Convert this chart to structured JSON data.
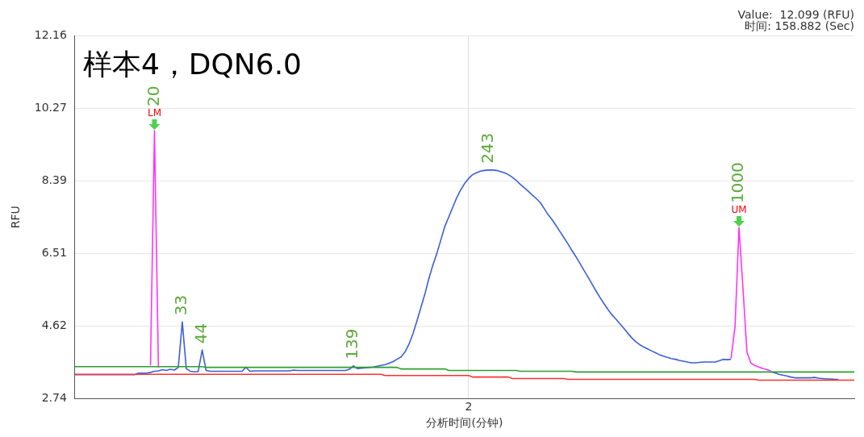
{
  "chart_data": {
    "type": "line",
    "title": "样本4，DQN6.0",
    "xlabel": "分析时间(分钟)",
    "ylabel": "RFU",
    "categories": [
      null,
      null,
      null,
      null,
      null,
      null,
      null,
      null,
      null,
      null,
      null,
      null,
      null,
      null,
      null,
      null,
      null,
      null,
      null,
      null,
      null,
      null,
      null,
      null,
      null,
      null,
      null,
      null,
      null,
      null,
      null,
      null,
      null,
      null,
      null,
      null,
      null,
      null,
      null,
      null,
      null,
      null,
      null,
      null,
      null,
      null,
      null,
      null,
      null,
      null,
      null,
      null,
      null,
      null,
      null,
      null,
      null,
      null,
      null,
      null,
      null,
      null,
      null,
      null,
      null,
      null,
      null,
      null,
      null,
      null,
      null,
      null,
      null,
      null,
      null,
      null,
      null,
      null,
      null,
      null,
      null,
      null,
      null,
      null,
      null,
      null,
      null,
      null,
      null,
      null,
      null,
      null,
      null,
      null,
      null,
      null,
      null,
      null,
      null,
      "2",
      null,
      null,
      null,
      null,
      null,
      null,
      null,
      null,
      null,
      null,
      null,
      null,
      null,
      null,
      null,
      null,
      null,
      null,
      null,
      null,
      null,
      null,
      null,
      null,
      null,
      null,
      null,
      null,
      null,
      null,
      null,
      null,
      null,
      null,
      null,
      null,
      null,
      null,
      null,
      null,
      null,
      null,
      null,
      null,
      null,
      null,
      null,
      null,
      null,
      null,
      null,
      null,
      null,
      null,
      null,
      null,
      null,
      null,
      null,
      null,
      null,
      null,
      null,
      null,
      null,
      null,
      null,
      null,
      null,
      null,
      null,
      null,
      null,
      null,
      null,
      null,
      null,
      null,
      null,
      null,
      null,
      null,
      null,
      null,
      null,
      null,
      null,
      null,
      null,
      null,
      null,
      null,
      null,
      null,
      null,
      null,
      null
    ],
    "ylim": [
      2.74,
      12.16
    ],
    "yticks": [
      2.74,
      4.62,
      6.51,
      8.39,
      10.27,
      12.16
    ],
    "grid": true,
    "legend": false,
    "series": [
      {
        "color": "#2e9e2e",
        "values": [
          3.57,
          3.57,
          3.57,
          3.57,
          3.57,
          3.57,
          3.57,
          3.57,
          3.57,
          3.57,
          3.57,
          3.57,
          3.57,
          3.57,
          3.57,
          3.57,
          3.57,
          3.57,
          3.57,
          3.57,
          3.57,
          3.57,
          3.57,
          3.57,
          3.57,
          3.57,
          3.57,
          3.57,
          3.57,
          3.57,
          3.57,
          3.57,
          3.57,
          3.55,
          3.55,
          3.55,
          3.55,
          3.55,
          3.55,
          3.55,
          3.55,
          3.55,
          3.55,
          3.55,
          3.55,
          3.55,
          3.55,
          3.55,
          3.55,
          3.55,
          3.55,
          3.55,
          3.55,
          3.55,
          3.55,
          3.55,
          3.55,
          3.55,
          3.55,
          3.55,
          3.55,
          3.55,
          3.55,
          3.55,
          3.55,
          3.55,
          3.55,
          3.55,
          3.55,
          3.55,
          3.55,
          3.55,
          3.55,
          3.55,
          3.55,
          3.55,
          3.55,
          3.55,
          3.55,
          3.55,
          3.55,
          3.55,
          3.51,
          3.51,
          3.51,
          3.51,
          3.51,
          3.51,
          3.51,
          3.51,
          3.51,
          3.51,
          3.51,
          3.51,
          3.47,
          3.47,
          3.47,
          3.47,
          3.47,
          3.47,
          3.47,
          3.47,
          3.47,
          3.47,
          3.47,
          3.47,
          3.47,
          3.47,
          3.47,
          3.47,
          3.47,
          3.47,
          3.45,
          3.45,
          3.45,
          3.45,
          3.45,
          3.45,
          3.45,
          3.45,
          3.45,
          3.45,
          3.45,
          3.45,
          3.45,
          3.45,
          3.43,
          3.43,
          3.43,
          3.43,
          3.43,
          3.43,
          3.43,
          3.43,
          3.43,
          3.43,
          3.43,
          3.43,
          3.43,
          3.43,
          3.43,
          3.43,
          3.43,
          3.43,
          3.43,
          3.43,
          3.43,
          3.43,
          3.43,
          3.43,
          3.43,
          3.43,
          3.43,
          3.43,
          3.43,
          3.43,
          3.43,
          3.43,
          3.43,
          3.43,
          3.43,
          3.43,
          3.43,
          3.43,
          3.43,
          3.43,
          3.43,
          3.43,
          3.43,
          3.43,
          3.43,
          3.43,
          3.43,
          3.43,
          3.43,
          3.43,
          3.43,
          3.43,
          3.43,
          3.43,
          3.43,
          3.43,
          3.43,
          3.43,
          3.43,
          3.43,
          3.43,
          3.43,
          3.43,
          3.43,
          3.43,
          3.43,
          3.43,
          3.43,
          3.43,
          3.43,
          3.43
        ]
      },
      {
        "color": "#ff3030",
        "values": [
          3.37,
          3.37,
          3.37,
          3.37,
          3.37,
          3.37,
          3.37,
          3.37,
          3.37,
          3.37,
          3.37,
          3.37,
          3.37,
          3.37,
          3.37,
          3.37,
          3.37,
          3.37,
          3.37,
          3.37,
          3.37,
          3.37,
          3.37,
          3.37,
          3.37,
          3.37,
          3.37,
          3.37,
          3.37,
          3.37,
          3.37,
          3.37,
          3.37,
          3.37,
          3.37,
          3.37,
          3.37,
          3.37,
          3.37,
          3.37,
          3.37,
          3.37,
          3.37,
          3.37,
          3.37,
          3.37,
          3.37,
          3.37,
          3.37,
          3.37,
          3.37,
          3.37,
          3.37,
          3.37,
          3.37,
          3.37,
          3.37,
          3.37,
          3.37,
          3.37,
          3.37,
          3.37,
          3.37,
          3.37,
          3.37,
          3.37,
          3.37,
          3.37,
          3.37,
          3.37,
          3.37,
          3.37,
          3.37,
          3.37,
          3.37,
          3.37,
          3.37,
          3.37,
          3.34,
          3.34,
          3.34,
          3.34,
          3.34,
          3.34,
          3.34,
          3.34,
          3.34,
          3.34,
          3.34,
          3.34,
          3.34,
          3.34,
          3.34,
          3.34,
          3.34,
          3.34,
          3.34,
          3.34,
          3.34,
          3.34,
          3.3,
          3.3,
          3.3,
          3.3,
          3.3,
          3.3,
          3.3,
          3.3,
          3.3,
          3.3,
          3.26,
          3.26,
          3.26,
          3.26,
          3.26,
          3.26,
          3.26,
          3.26,
          3.26,
          3.26,
          3.26,
          3.26,
          3.26,
          3.26,
          3.24,
          3.24,
          3.24,
          3.24,
          3.24,
          3.24,
          3.24,
          3.24,
          3.24,
          3.24,
          3.24,
          3.24,
          3.24,
          3.24,
          3.24,
          3.24,
          3.24,
          3.24,
          3.24,
          3.24,
          3.24,
          3.24,
          3.24,
          3.24,
          3.24,
          3.24,
          3.24,
          3.24,
          3.24,
          3.24,
          3.24,
          3.24,
          3.24,
          3.24,
          3.24,
          3.24,
          3.24,
          3.24,
          3.24,
          3.24,
          3.24,
          3.24,
          3.24,
          3.24,
          3.24,
          3.24,
          3.24,
          3.24,
          3.22,
          3.22,
          3.22,
          3.22,
          3.22,
          3.22,
          3.22,
          3.22,
          3.22,
          3.22,
          3.22,
          3.22,
          3.22,
          3.22,
          3.22,
          3.22,
          3.22,
          3.22,
          3.22,
          3.22,
          3.22,
          3.22,
          3.22,
          3.22,
          3.22
        ]
      },
      {
        "color": "#3a5fd6",
        "values": [
          3.36,
          3.36,
          3.36,
          3.36,
          3.36,
          3.36,
          3.36,
          3.36,
          3.36,
          3.36,
          3.36,
          3.36,
          3.36,
          3.36,
          3.36,
          3.36,
          3.4,
          3.4,
          3.4,
          3.42,
          3.45,
          3.46,
          3.49,
          3.47,
          3.5,
          3.48,
          3.55,
          4.73,
          3.52,
          3.45,
          3.44,
          3.44,
          4.0,
          3.47,
          3.45,
          3.45,
          3.45,
          3.45,
          3.45,
          3.45,
          3.45,
          3.45,
          3.45,
          3.55,
          3.45,
          3.46,
          3.46,
          3.46,
          3.46,
          3.46,
          3.46,
          3.46,
          3.46,
          3.46,
          3.46,
          3.48,
          3.47,
          3.47,
          3.47,
          3.47,
          3.47,
          3.47,
          3.47,
          3.47,
          3.47,
          3.47,
          3.47,
          3.47,
          3.47,
          3.5,
          3.59,
          3.52,
          3.53,
          3.54,
          3.55,
          3.56,
          3.58,
          3.6,
          3.62,
          3.66,
          3.7,
          3.76,
          3.82,
          3.95,
          4.15,
          4.42,
          4.75,
          5.1,
          5.45,
          5.85,
          6.2,
          6.5,
          6.85,
          7.2,
          7.45,
          7.7,
          7.95,
          8.15,
          8.32,
          8.45,
          8.55,
          8.6,
          8.64,
          8.66,
          8.67,
          8.67,
          8.66,
          8.63,
          8.6,
          8.55,
          8.48,
          8.4,
          8.3,
          8.21,
          8.12,
          8.02,
          7.93,
          7.83,
          7.67,
          7.51,
          7.38,
          7.23,
          7.07,
          6.91,
          6.75,
          6.58,
          6.42,
          6.25,
          6.07,
          5.9,
          5.72,
          5.54,
          5.37,
          5.21,
          5.06,
          4.92,
          4.81,
          4.69,
          4.57,
          4.44,
          4.32,
          4.22,
          4.14,
          4.08,
          4.03,
          3.98,
          3.93,
          3.88,
          3.84,
          3.81,
          3.78,
          3.76,
          3.73,
          3.71,
          3.69,
          3.67,
          3.67,
          3.68,
          3.69,
          3.69,
          3.69,
          3.69,
          3.72,
          3.76,
          3.75,
          3.76,
          null,
          null,
          null,
          null,
          null,
          null,
          null,
          null,
          null,
          3.44,
          3.41,
          3.37,
          3.35,
          3.33,
          3.3,
          3.28,
          3.28,
          3.28,
          3.28,
          3.28,
          3.29,
          3.27,
          3.26,
          3.25,
          3.25,
          3.24,
          3.24,
          null,
          null,
          null,
          null
        ]
      },
      {
        "color": "#ff33ff",
        "values": [
          null,
          null,
          null,
          null,
          null,
          null,
          null,
          null,
          null,
          null,
          null,
          null,
          null,
          null,
          null,
          null,
          null,
          null,
          null,
          3.6,
          9.69,
          3.55,
          null,
          null,
          null,
          null,
          null,
          null,
          null,
          null,
          null,
          null,
          null,
          null,
          null,
          null,
          null,
          null,
          null,
          null,
          null,
          null,
          null,
          null,
          null,
          null,
          null,
          null,
          null,
          null,
          null,
          null,
          null,
          null,
          null,
          null,
          null,
          null,
          null,
          null,
          null,
          null,
          null,
          null,
          null,
          null,
          null,
          null,
          null,
          null,
          null,
          null,
          null,
          null,
          null,
          null,
          null,
          null,
          null,
          null,
          null,
          null,
          null,
          null,
          null,
          null,
          null,
          null,
          null,
          null,
          null,
          null,
          null,
          null,
          null,
          null,
          null,
          null,
          null,
          null,
          null,
          null,
          null,
          null,
          null,
          null,
          null,
          null,
          null,
          null,
          null,
          null,
          null,
          null,
          null,
          null,
          null,
          null,
          null,
          null,
          null,
          null,
          null,
          null,
          null,
          null,
          null,
          null,
          null,
          null,
          null,
          null,
          null,
          null,
          null,
          null,
          null,
          null,
          null,
          null,
          null,
          null,
          null,
          null,
          null,
          null,
          null,
          null,
          null,
          null,
          null,
          null,
          null,
          null,
          null,
          null,
          null,
          null,
          null,
          null,
          null,
          null,
          null,
          null,
          null,
          3.78,
          4.6,
          7.18,
          5.6,
          3.95,
          3.66,
          3.6,
          3.56,
          3.52,
          3.49,
          3.46,
          null,
          null,
          null,
          null,
          null,
          null,
          null,
          null,
          null,
          null,
          null,
          null,
          null,
          null,
          null,
          null,
          null,
          null,
          null,
          null,
          null
        ]
      }
    ],
    "annotations": [
      {
        "text": "LM",
        "y": 9.69
      },
      {
        "text": "20",
        "y": 9.69
      },
      {
        "text": "33",
        "y": 4.73
      },
      {
        "text": "44",
        "y": 4.0
      },
      {
        "text": "139",
        "y": 3.59
      },
      {
        "text": "243",
        "y": 8.67
      },
      {
        "text": "UM",
        "y": 7.18
      },
      {
        "text": "1000",
        "y": 7.18
      },
      "Value:  12.099 (RFU)",
      "时间: 158.882 (Sec)"
    ]
  }
}
